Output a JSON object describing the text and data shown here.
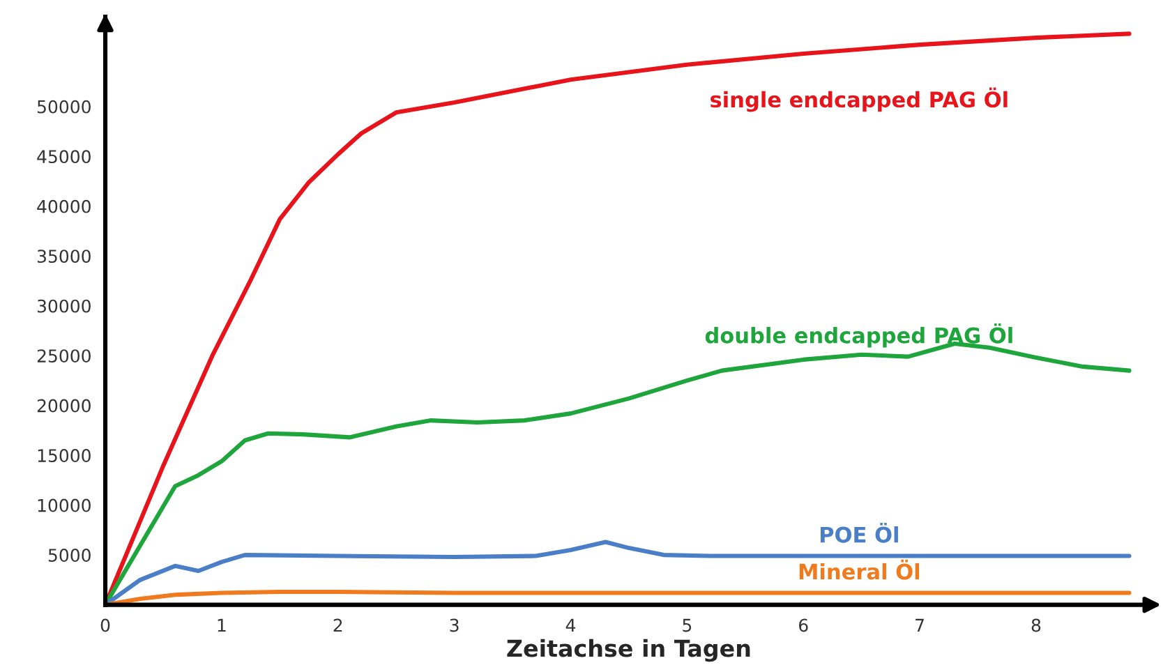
{
  "chart_data": {
    "type": "line",
    "xlabel": "Zeitachse in Tagen",
    "xlim": [
      0,
      9
    ],
    "xticks": [
      0,
      1,
      2,
      3,
      4,
      5,
      6,
      7,
      8
    ],
    "ylim": [
      0,
      59000
    ],
    "yticks": [
      5000,
      10000,
      15000,
      20000,
      25000,
      30000,
      35000,
      40000,
      45000,
      50000
    ],
    "grid": false,
    "legend": false,
    "marker": "none",
    "line_style": "solid",
    "series": [
      {
        "name": "single endcapped PAG Öl",
        "color": "#e8141b",
        "x": [
          0,
          0.5,
          0.92,
          1.25,
          1.5,
          1.75,
          2.0,
          2.2,
          2.5,
          3,
          4,
          5,
          6,
          7,
          8,
          8.8
        ],
        "values": [
          0,
          14000,
          25000,
          32600,
          38700,
          42400,
          45200,
          47300,
          49400,
          50400,
          52700,
          54200,
          55300,
          56200,
          56900,
          57300
        ]
      },
      {
        "name": "double endcapped PAG Öl",
        "color": "#1ea53c",
        "x": [
          0,
          0.6,
          0.8,
          1.0,
          1.2,
          1.4,
          1.7,
          2.1,
          2.5,
          2.8,
          3.2,
          3.6,
          4,
          4.5,
          5,
          5.3,
          6,
          6.5,
          6.9,
          7.3,
          7.6,
          8,
          8.4,
          8.8
        ],
        "values": [
          0,
          11900,
          13000,
          14400,
          16500,
          17200,
          17100,
          16800,
          17900,
          18500,
          18300,
          18500,
          19200,
          20700,
          22500,
          23500,
          24600,
          25100,
          24900,
          26200,
          25800,
          24800,
          23900,
          23500
        ]
      },
      {
        "name": "POE Öl",
        "color": "#4a7fc8",
        "x": [
          0,
          0.3,
          0.6,
          0.8,
          1.0,
          1.2,
          2,
          3,
          3.7,
          4,
          4.3,
          4.5,
          4.8,
          5.2,
          6,
          8.8
        ],
        "values": [
          0,
          2500,
          3900,
          3400,
          4300,
          5000,
          4900,
          4800,
          4900,
          5500,
          6300,
          5700,
          5000,
          4900,
          4900,
          4900
        ]
      },
      {
        "name": "Mineral Öl",
        "color": "#f07a1e",
        "x": [
          0,
          0.3,
          0.6,
          1.0,
          1.5,
          2,
          3,
          8.8
        ],
        "values": [
          0,
          600,
          1000,
          1200,
          1300,
          1300,
          1200,
          1200
        ]
      }
    ]
  }
}
